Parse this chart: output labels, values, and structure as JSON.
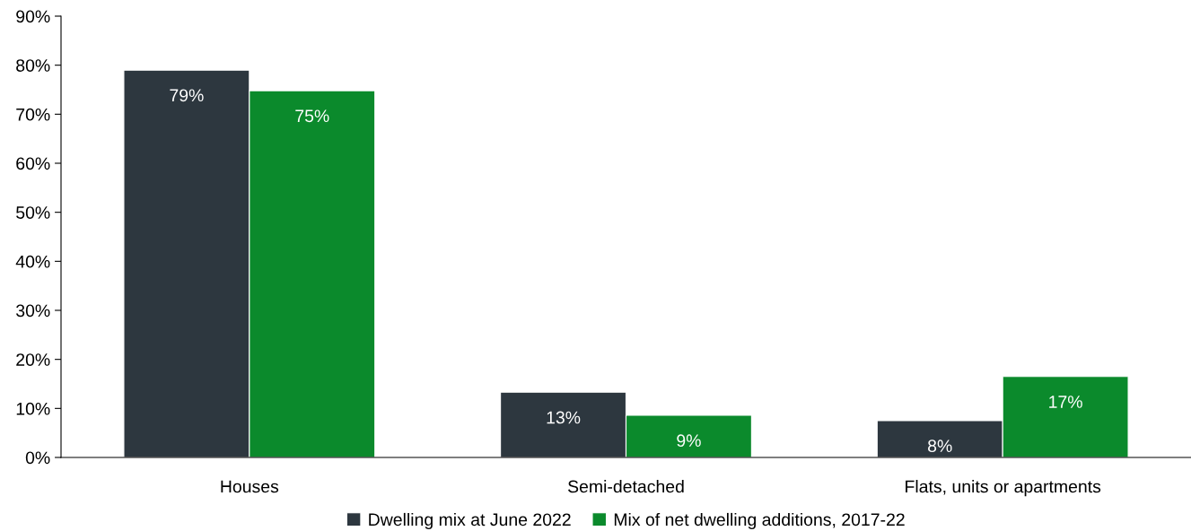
{
  "chart_data": {
    "type": "bar",
    "categories": [
      "Houses",
      "Semi-detached",
      "Flats, units or apartments"
    ],
    "series": [
      {
        "name": "Dwelling mix at June 2022",
        "color": "#2d373f",
        "values": [
          79,
          13.3,
          7.5
        ],
        "value_labels": [
          "79%",
          "13%",
          "8%"
        ]
      },
      {
        "name": "Mix of net dwelling additions, 2017-22",
        "color": "#0b8a2c",
        "values": [
          74.8,
          8.6,
          16.5
        ],
        "value_labels": [
          "75%",
          "9%",
          "17%"
        ]
      }
    ],
    "ylim": [
      0,
      90
    ],
    "yticks": [
      {
        "value": 0,
        "label": "0%"
      },
      {
        "value": 10,
        "label": "10%"
      },
      {
        "value": 20,
        "label": "20%"
      },
      {
        "value": 30,
        "label": "30%"
      },
      {
        "value": 40,
        "label": "40%"
      },
      {
        "value": 50,
        "label": "50%"
      },
      {
        "value": 60,
        "label": "60%"
      },
      {
        "value": 70,
        "label": "70%"
      },
      {
        "value": 80,
        "label": "80%"
      },
      {
        "value": 90,
        "label": "90%"
      }
    ],
    "grid": false,
    "legend": "bottom"
  }
}
